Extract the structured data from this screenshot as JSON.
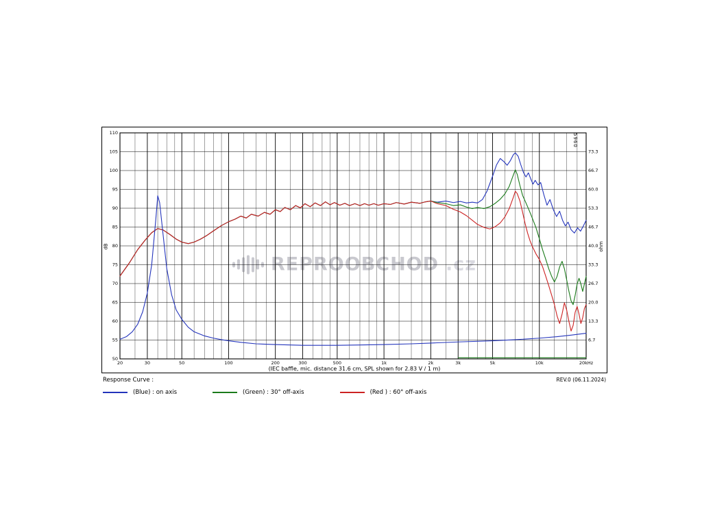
{
  "meta": {
    "revision": "REV.0 (06.11.2024)",
    "model_code": "5960"
  },
  "watermark": {
    "icon": "equalizer-icon",
    "text": "REPROOBCHOD",
    "suffix": ".cz"
  },
  "legend": {
    "title": "Response Curve :",
    "items": [
      {
        "color": "#2233bb",
        "label": "(Blue)  : on axis"
      },
      {
        "color": "#1a7a1a",
        "label": "(Green) : 30° off-axis"
      },
      {
        "color": "#cc2222",
        "label": "(Red ) : 60° off-axis"
      }
    ]
  },
  "chart_data": {
    "type": "line",
    "title": "",
    "caption": "(IEC baffle, mic. distance 31.6 cm, SPL shown for 2.83 V / 1 m)",
    "x_axis": {
      "scale": "log",
      "min": 20,
      "max": 20000,
      "unit": "Hz",
      "major_ticks": [
        {
          "f": 20,
          "label": "20"
        },
        {
          "f": 30,
          "label": "30"
        },
        {
          "f": 50,
          "label": "50"
        },
        {
          "f": 100,
          "label": "100"
        },
        {
          "f": 200,
          "label": "200"
        },
        {
          "f": 300,
          "label": "300"
        },
        {
          "f": 500,
          "label": "500"
        },
        {
          "f": 1000,
          "label": "1k"
        },
        {
          "f": 2000,
          "label": "2k"
        },
        {
          "f": 3000,
          "label": "3k"
        },
        {
          "f": 5000,
          "label": "5k"
        },
        {
          "f": 10000,
          "label": "10k"
        },
        {
          "f": 20000,
          "label": "20kHz"
        }
      ],
      "minor_gridlines": [
        25,
        35,
        40,
        45,
        60,
        70,
        80,
        90,
        125,
        150,
        175,
        250,
        350,
        400,
        450,
        600,
        700,
        800,
        900,
        1250,
        1500,
        1750,
        2500,
        3500,
        4000,
        4500,
        6000,
        7000,
        8000,
        9000,
        12500,
        15000,
        17500
      ]
    },
    "y_axis_left": {
      "min": 50,
      "max": 110,
      "step": 5,
      "unit": "dB",
      "tick_labels": [
        "110",
        "105",
        "100",
        "95",
        "90",
        "85",
        "80",
        "75",
        "70",
        "65",
        "60",
        "55",
        "50"
      ]
    },
    "y_axis_right": {
      "unit": "ohm",
      "ticks": [
        {
          "db": 105,
          "label": "73.3"
        },
        {
          "db": 100,
          "label": "66.7"
        },
        {
          "db": 95,
          "label": "60.0"
        },
        {
          "db": 90,
          "label": "53.3"
        },
        {
          "db": 85,
          "label": "46.7"
        },
        {
          "db": 80,
          "label": "40.0"
        },
        {
          "db": 75,
          "label": "33.3"
        },
        {
          "db": 70,
          "label": "26.7"
        },
        {
          "db": 65,
          "label": "20.0"
        },
        {
          "db": 60,
          "label": "13.3"
        },
        {
          "db": 55,
          "label": "6.7"
        }
      ]
    },
    "shared_low_freq_points": [
      [
        20,
        72
      ],
      [
        23,
        75.5
      ],
      [
        26,
        79
      ],
      [
        29,
        81.5
      ],
      [
        32,
        83.5
      ],
      [
        35,
        84.6
      ],
      [
        38,
        84.2
      ],
      [
        42,
        83
      ],
      [
        46,
        81.8
      ],
      [
        50,
        81
      ],
      [
        55,
        80.6
      ],
      [
        60,
        81
      ],
      [
        66,
        81.8
      ],
      [
        72,
        82.7
      ],
      [
        80,
        84
      ],
      [
        90,
        85.4
      ],
      [
        100,
        86.4
      ],
      [
        110,
        87.1
      ],
      [
        120,
        87.9
      ],
      [
        130,
        87.4
      ],
      [
        140,
        88.4
      ],
      [
        155,
        87.9
      ],
      [
        170,
        88.9
      ],
      [
        185,
        88.4
      ],
      [
        200,
        89.6
      ],
      [
        215,
        89.1
      ],
      [
        230,
        90.2
      ],
      [
        250,
        89.6
      ],
      [
        270,
        90.7
      ],
      [
        290,
        90.1
      ],
      [
        310,
        91.2
      ],
      [
        335,
        90.4
      ],
      [
        360,
        91.4
      ],
      [
        390,
        90.7
      ],
      [
        420,
        91.7
      ],
      [
        450,
        90.9
      ],
      [
        480,
        91.5
      ],
      [
        520,
        90.8
      ],
      [
        560,
        91.3
      ],
      [
        600,
        90.7
      ],
      [
        650,
        91.2
      ],
      [
        700,
        90.7
      ],
      [
        750,
        91.2
      ],
      [
        800,
        90.8
      ],
      [
        860,
        91.2
      ],
      [
        920,
        90.8
      ],
      [
        1000,
        91.2
      ],
      [
        1100,
        91.0
      ],
      [
        1200,
        91.5
      ],
      [
        1350,
        91.1
      ],
      [
        1500,
        91.6
      ],
      [
        1700,
        91.3
      ],
      [
        1850,
        91.7
      ],
      [
        2000,
        91.9
      ]
    ],
    "series": [
      {
        "name": "on-axis",
        "legend": "(Blue)  : on axis",
        "color": "#2233bb",
        "extends_shared": true,
        "points": [
          [
            2200,
            91.6
          ],
          [
            2500,
            91.9
          ],
          [
            2800,
            91.5
          ],
          [
            3100,
            91.8
          ],
          [
            3400,
            91.4
          ],
          [
            3700,
            91.6
          ],
          [
            4000,
            91.4
          ],
          [
            4300,
            92.3
          ],
          [
            4600,
            94.5
          ],
          [
            5000,
            98.5
          ],
          [
            5300,
            101.5
          ],
          [
            5600,
            103.2
          ],
          [
            5900,
            102.4
          ],
          [
            6200,
            101.4
          ],
          [
            6500,
            102.6
          ],
          [
            6800,
            104.2
          ],
          [
            7000,
            104.7
          ],
          [
            7300,
            103.8
          ],
          [
            7600,
            101.5
          ],
          [
            7900,
            99.5
          ],
          [
            8200,
            98.3
          ],
          [
            8500,
            99.4
          ],
          [
            8800,
            97.8
          ],
          [
            9100,
            96.4
          ],
          [
            9400,
            97.4
          ],
          [
            9800,
            96.2
          ],
          [
            10200,
            96.8
          ],
          [
            10700,
            93.5
          ],
          [
            11200,
            90.8
          ],
          [
            11700,
            92.3
          ],
          [
            12300,
            89.6
          ],
          [
            12900,
            87.8
          ],
          [
            13500,
            89.2
          ],
          [
            14100,
            86.8
          ],
          [
            14700,
            85.3
          ],
          [
            15300,
            86.3
          ],
          [
            16000,
            84.3
          ],
          [
            16800,
            83.4
          ],
          [
            17600,
            84.8
          ],
          [
            18400,
            83.9
          ],
          [
            19200,
            85.3
          ],
          [
            20000,
            86.8
          ]
        ]
      },
      {
        "name": "30-deg-off-axis",
        "legend": "(Green) : 30° off-axis",
        "color": "#1a7a1a",
        "extends_shared": true,
        "points": [
          [
            2200,
            91.5
          ],
          [
            2500,
            91.2
          ],
          [
            2800,
            90.7
          ],
          [
            3100,
            90.9
          ],
          [
            3400,
            90.3
          ],
          [
            3700,
            89.9
          ],
          [
            4000,
            90.2
          ],
          [
            4400,
            89.9
          ],
          [
            4800,
            90.4
          ],
          [
            5200,
            91.3
          ],
          [
            5600,
            92.4
          ],
          [
            6000,
            93.8
          ],
          [
            6400,
            95.8
          ],
          [
            6800,
            98.8
          ],
          [
            7000,
            100.2
          ],
          [
            7200,
            99
          ],
          [
            7500,
            96
          ],
          [
            7800,
            93.4
          ],
          [
            8100,
            91.9
          ],
          [
            8400,
            90.4
          ],
          [
            8700,
            88.9
          ],
          [
            9000,
            87.4
          ],
          [
            9500,
            84.9
          ],
          [
            10000,
            81.9
          ],
          [
            10500,
            78.9
          ],
          [
            11000,
            76.4
          ],
          [
            11500,
            73.9
          ],
          [
            12000,
            71.9
          ],
          [
            12500,
            70.4
          ],
          [
            13000,
            71.9
          ],
          [
            13500,
            74.4
          ],
          [
            14000,
            75.9
          ],
          [
            14500,
            73.9
          ],
          [
            15000,
            70.9
          ],
          [
            15500,
            67.9
          ],
          [
            16000,
            65.4
          ],
          [
            16500,
            64.4
          ],
          [
            17000,
            66.9
          ],
          [
            17500,
            69.9
          ],
          [
            18000,
            71.4
          ],
          [
            18500,
            69.9
          ],
          [
            19000,
            67.9
          ],
          [
            19500,
            69.9
          ],
          [
            20000,
            71.9
          ]
        ]
      },
      {
        "name": "60-deg-off-axis",
        "legend": "(Red ) : 60° off-axis",
        "color": "#cc2222",
        "extends_shared": true,
        "points": [
          [
            2200,
            91.2
          ],
          [
            2500,
            90.7
          ],
          [
            2800,
            89.7
          ],
          [
            3100,
            89
          ],
          [
            3400,
            88
          ],
          [
            3700,
            86.8
          ],
          [
            4000,
            85.7
          ],
          [
            4400,
            84.9
          ],
          [
            4800,
            84.5
          ],
          [
            5200,
            85.1
          ],
          [
            5600,
            86.1
          ],
          [
            6000,
            87.7
          ],
          [
            6400,
            89.9
          ],
          [
            6800,
            92.9
          ],
          [
            7000,
            94.5
          ],
          [
            7200,
            93.9
          ],
          [
            7500,
            91.9
          ],
          [
            7800,
            88.9
          ],
          [
            8100,
            85.9
          ],
          [
            8400,
            83.4
          ],
          [
            8700,
            81.4
          ],
          [
            9000,
            79.9
          ],
          [
            9500,
            77.9
          ],
          [
            10000,
            76.4
          ],
          [
            10500,
            74.4
          ],
          [
            11000,
            71.9
          ],
          [
            11500,
            69.4
          ],
          [
            12000,
            66.9
          ],
          [
            12500,
            64.4
          ],
          [
            13000,
            61.4
          ],
          [
            13500,
            59.4
          ],
          [
            14000,
            61.9
          ],
          [
            14500,
            64.9
          ],
          [
            15000,
            62.9
          ],
          [
            15500,
            59.9
          ],
          [
            16000,
            57.4
          ],
          [
            16500,
            58.9
          ],
          [
            17000,
            62.4
          ],
          [
            17500,
            63.9
          ],
          [
            18000,
            61.9
          ],
          [
            18500,
            59.4
          ],
          [
            19000,
            60.9
          ],
          [
            19500,
            63.4
          ],
          [
            20000,
            64.4
          ]
        ]
      },
      {
        "name": "impedance",
        "legend": "",
        "color": "#2233bb",
        "extends_shared": false,
        "points": [
          [
            20,
            55.2
          ],
          [
            22,
            55.9
          ],
          [
            24,
            57.2
          ],
          [
            26,
            59.2
          ],
          [
            28,
            62.5
          ],
          [
            30,
            67.5
          ],
          [
            32,
            75
          ],
          [
            34,
            87
          ],
          [
            35,
            93.3
          ],
          [
            36,
            91.5
          ],
          [
            38,
            82.5
          ],
          [
            40,
            74
          ],
          [
            43,
            67
          ],
          [
            46,
            63
          ],
          [
            50,
            60.5
          ],
          [
            55,
            58.4
          ],
          [
            60,
            57.2
          ],
          [
            70,
            56.1
          ],
          [
            80,
            55.5
          ],
          [
            90,
            55.1
          ],
          [
            100,
            54.8
          ],
          [
            120,
            54.4
          ],
          [
            150,
            54.0
          ],
          [
            200,
            53.8
          ],
          [
            300,
            53.6
          ],
          [
            400,
            53.6
          ],
          [
            500,
            53.6
          ],
          [
            700,
            53.7
          ],
          [
            1000,
            53.8
          ],
          [
            1500,
            54.0
          ],
          [
            2000,
            54.2
          ],
          [
            3000,
            54.5
          ],
          [
            5000,
            54.8
          ],
          [
            7000,
            55.1
          ],
          [
            10000,
            55.5
          ],
          [
            13000,
            55.9
          ],
          [
            16000,
            56.3
          ],
          [
            20000,
            56.8
          ]
        ]
      },
      {
        "name": "baseline-green",
        "legend": "",
        "color": "#1a7a1a",
        "extends_shared": false,
        "points": [
          [
            3000,
            50.3
          ],
          [
            20000,
            50.3
          ]
        ]
      }
    ]
  }
}
